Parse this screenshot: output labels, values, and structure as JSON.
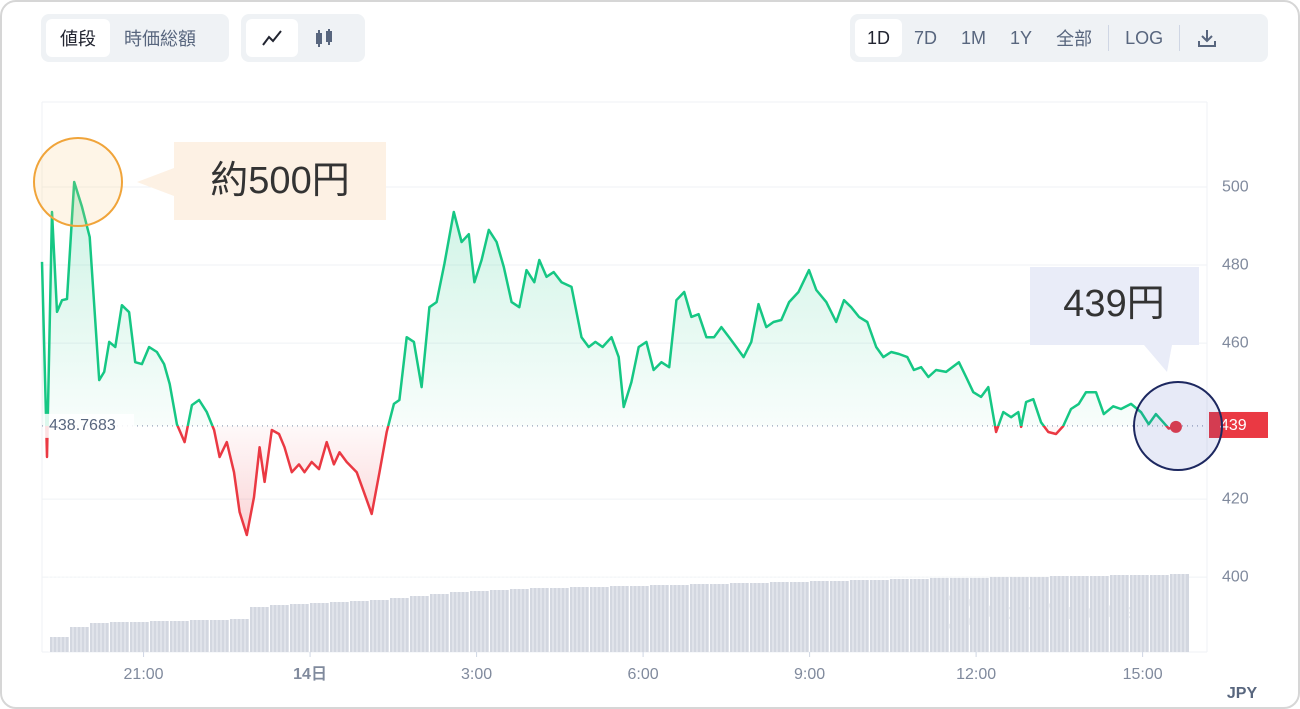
{
  "toolbar": {
    "metric_tabs": [
      "値段",
      "時価総額"
    ],
    "ranges": [
      "1D",
      "7D",
      "1M",
      "1Y",
      "全部"
    ],
    "log": "LOG"
  },
  "chart_data": {
    "type": "line",
    "annotations": [
      "約500円",
      "439円"
    ],
    "currency": "JPY",
    "watermark": "CoinMarketCap",
    "baseline": 438.7683,
    "last_price_label": 439,
    "up_color": "#16c784",
    "down_color": "#ea3943",
    "xlim": [
      19.17,
      40.16
    ],
    "xticks": [
      {
        "value": 21,
        "label": "21:00"
      },
      {
        "value": 24,
        "label": "14日"
      },
      {
        "value": 27,
        "label": "3:00"
      },
      {
        "value": 30,
        "label": "6:00"
      },
      {
        "value": 33,
        "label": "9:00"
      },
      {
        "value": 36,
        "label": "12:00"
      },
      {
        "value": 39,
        "label": "15:00"
      }
    ],
    "ylim": [
      380.8,
      521.8
    ],
    "yticks": [
      400,
      420,
      460,
      480,
      500
    ],
    "grid": true,
    "x": [
      19.17,
      19.24,
      19.26,
      19.35,
      19.44,
      19.53,
      19.62,
      19.75,
      19.89,
      20.03,
      20.2,
      20.29,
      20.38,
      20.49,
      20.61,
      20.74,
      20.85,
      20.97,
      21.1,
      21.24,
      21.37,
      21.47,
      21.6,
      21.74,
      21.87,
      22.0,
      22.14,
      22.27,
      22.37,
      22.5,
      22.63,
      22.73,
      22.86,
      22.99,
      23.09,
      23.18,
      23.31,
      23.44,
      23.54,
      23.67,
      23.8,
      23.9,
      24.03,
      24.16,
      24.3,
      24.43,
      24.53,
      24.66,
      24.84,
      24.97,
      25.11,
      25.25,
      25.38,
      25.51,
      25.61,
      25.74,
      25.87,
      26.01,
      26.15,
      26.28,
      26.42,
      26.59,
      26.73,
      26.86,
      26.96,
      27.09,
      27.22,
      27.36,
      27.49,
      27.63,
      27.77,
      27.9,
      28.04,
      28.13,
      28.26,
      28.39,
      28.53,
      28.71,
      28.89,
      29.02,
      29.14,
      29.27,
      29.43,
      29.56,
      29.65,
      29.79,
      29.92,
      30.06,
      30.19,
      30.33,
      30.47,
      30.6,
      30.74,
      30.87,
      31.0,
      31.14,
      31.28,
      31.41,
      31.55,
      31.68,
      31.81,
      31.95,
      32.08,
      32.22,
      32.35,
      32.49,
      32.63,
      32.8,
      32.99,
      33.12,
      33.3,
      33.48,
      33.62,
      33.75,
      33.89,
      34.04,
      34.2,
      34.33,
      34.47,
      34.61,
      34.76,
      34.88,
      35.01,
      35.14,
      35.28,
      35.46,
      35.69,
      35.82,
      35.95,
      36.09,
      36.22,
      36.36,
      36.49,
      36.63,
      36.76,
      36.81,
      36.9,
      37.03,
      37.17,
      37.3,
      37.44,
      37.57,
      37.71,
      37.85,
      37.98,
      38.16,
      38.3,
      38.47,
      38.61,
      38.79,
      38.97,
      39.11,
      39.24,
      39.37,
      39.47,
      39.6
    ],
    "series": [
      {
        "values": [
          480.8,
          442.3,
          430.8,
          493.6,
          468,
          471,
          471.3,
          501.3,
          494.9,
          487.2,
          450.5,
          452.6,
          460.3,
          459,
          469.7,
          467.9,
          455.1,
          454.6,
          459,
          457.7,
          454.6,
          449.5,
          439.2,
          434.6,
          444.1,
          445.4,
          442.3,
          437.7,
          430.8,
          434.6,
          426.9,
          416.7,
          410.8,
          420.5,
          433.3,
          424.4,
          437.7,
          436.7,
          433.3,
          426.9,
          428.9,
          426.9,
          429.5,
          427.7,
          434.6,
          428.9,
          432,
          429.5,
          426.9,
          421.8,
          416.2,
          426.9,
          437.2,
          444.4,
          445.4,
          461.5,
          460.3,
          448.7,
          469.2,
          470.5,
          480.3,
          493.6,
          485.9,
          487.9,
          475.6,
          481.3,
          489,
          485.9,
          479.5,
          470.5,
          469.2,
          478.7,
          475.6,
          481.3,
          477,
          478.2,
          475.6,
          474.4,
          461.5,
          459,
          460.3,
          459,
          461.5,
          456.4,
          443.6,
          450,
          459,
          460.3,
          453.1,
          455.1,
          453.8,
          471,
          473.1,
          466.7,
          467.4,
          461.5,
          461.5,
          464.1,
          461.5,
          459,
          456.4,
          460.3,
          470,
          464.1,
          465.4,
          465.9,
          470.5,
          473.1,
          478.7,
          473.6,
          470.5,
          465.4,
          471,
          469.2,
          466.7,
          465.4,
          459,
          456.4,
          457.7,
          457.2,
          456.4,
          453.1,
          453.8,
          451.3,
          453.1,
          452.6,
          455.1,
          451.3,
          447.4,
          446.2,
          448.7,
          437.2,
          442.3,
          441,
          442.3,
          438.5,
          444.9,
          445.6,
          439.7,
          437.2,
          436.7,
          438.7,
          443.1,
          444.4,
          447.4,
          447.4,
          441.8,
          443.8,
          443.1,
          444.4,
          442.3,
          439.2,
          441.8,
          439.7,
          438.1,
          438.5
        ]
      }
    ],
    "volume": {
      "color": "#d3d7e0",
      "ylim": [
        0,
        100
      ],
      "values": [
        15,
        25,
        29,
        30,
        30,
        31,
        31,
        32,
        32,
        33,
        45,
        47,
        48,
        49,
        50,
        51,
        52,
        54,
        56,
        58,
        60,
        61,
        62,
        63,
        64,
        64,
        65,
        65,
        66,
        66,
        67,
        67,
        68,
        68,
        69,
        69,
        70,
        70,
        71,
        71,
        72,
        72,
        73,
        73,
        74,
        74,
        74,
        75,
        75,
        75,
        76,
        76,
        76,
        77,
        77,
        77,
        78
      ]
    }
  }
}
